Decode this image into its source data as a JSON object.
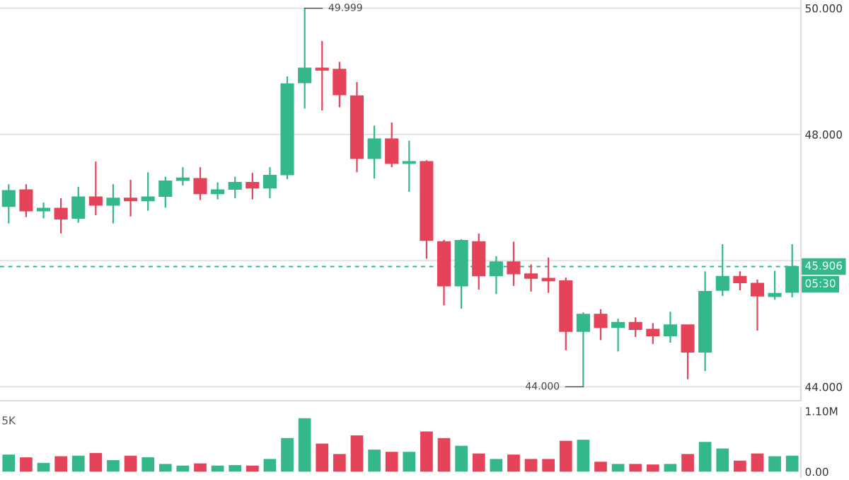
{
  "chart_data": [
    {
      "type": "candlestick",
      "categories": [
        null,
        null,
        null,
        null,
        null,
        null,
        null,
        null,
        null,
        null,
        null,
        null,
        null,
        null,
        null,
        null,
        null,
        null,
        null,
        null,
        null,
        null,
        null,
        null,
        null,
        null,
        null,
        null,
        null,
        null,
        null,
        null,
        null,
        null,
        null,
        null,
        null,
        null,
        null,
        null,
        null,
        null,
        null,
        null,
        null,
        null
      ],
      "ohlc": [
        [
          46.86,
          47.21,
          46.59,
          47.11
        ],
        [
          47.12,
          47.21,
          46.69,
          46.79
        ],
        [
          46.79,
          46.92,
          46.67,
          46.83
        ],
        [
          46.83,
          46.99,
          46.43,
          46.66
        ],
        [
          46.67,
          47.17,
          46.6,
          47.01
        ],
        [
          47.01,
          47.57,
          46.72,
          46.88
        ],
        [
          46.88,
          47.21,
          46.59,
          46.99
        ],
        [
          46.99,
          47.28,
          46.7,
          46.95
        ],
        [
          46.95,
          47.4,
          46.79,
          47.01
        ],
        [
          47.02,
          47.33,
          46.84,
          47.26
        ],
        [
          47.27,
          47.48,
          47.19,
          47.31
        ],
        [
          47.3,
          47.48,
          46.96,
          47.06
        ],
        [
          47.06,
          47.24,
          46.97,
          47.12
        ],
        [
          47.13,
          47.33,
          46.99,
          47.24
        ],
        [
          47.24,
          47.39,
          46.97,
          47.15
        ],
        [
          47.15,
          47.48,
          46.99,
          47.35
        ],
        [
          47.36,
          48.92,
          47.29,
          48.8
        ],
        [
          48.82,
          49.999,
          48.41,
          49.05
        ],
        [
          49.05,
          49.48,
          48.38,
          49.02
        ],
        [
          49.03,
          49.15,
          48.43,
          48.63
        ],
        [
          48.61,
          48.83,
          47.4,
          47.62
        ],
        [
          47.62,
          48.14,
          47.3,
          47.93
        ],
        [
          47.93,
          48.19,
          47.48,
          47.54
        ],
        [
          47.54,
          47.9,
          47.09,
          47.57
        ],
        [
          47.57,
          47.59,
          46.03,
          46.32
        ],
        [
          46.3,
          46.33,
          45.29,
          45.6
        ],
        [
          45.6,
          46.34,
          45.24,
          46.32
        ],
        [
          46.3,
          46.43,
          45.54,
          45.76
        ],
        [
          45.76,
          46.07,
          45.47,
          45.98
        ],
        [
          45.98,
          46.3,
          45.6,
          45.79
        ],
        [
          45.79,
          45.94,
          45.51,
          45.72
        ],
        [
          45.72,
          46.05,
          45.49,
          45.68
        ],
        [
          45.68,
          45.73,
          44.58,
          44.88
        ],
        [
          44.88,
          45.18,
          44.0,
          45.15
        ],
        [
          45.15,
          45.23,
          44.74,
          44.94
        ],
        [
          44.94,
          45.08,
          44.56,
          45.02
        ],
        [
          45.02,
          45.1,
          44.79,
          44.91
        ],
        [
          44.91,
          45.01,
          44.68,
          44.81
        ],
        [
          44.81,
          45.19,
          44.7,
          44.98
        ],
        [
          44.98,
          44.98,
          44.12,
          44.55
        ],
        [
          44.55,
          45.83,
          44.25,
          45.51
        ],
        [
          45.53,
          46.26,
          45.44,
          45.75
        ],
        [
          45.75,
          45.83,
          45.53,
          45.65
        ],
        [
          45.64,
          45.7,
          44.89,
          45.44
        ],
        [
          45.43,
          45.84,
          45.38,
          45.48
        ],
        [
          45.5,
          46.26,
          45.42,
          45.906
        ]
      ],
      "colors": [
        "#34b88a",
        "#e5435a",
        "#34b88a",
        "#e5435a",
        "#34b88a",
        "#e5435a",
        "#34b88a",
        "#e5435a",
        "#34b88a",
        "#34b88a",
        "#34b88a",
        "#e5435a",
        "#34b88a",
        "#34b88a",
        "#e5435a",
        "#34b88a",
        "#34b88a",
        "#34b88a",
        "#e5435a",
        "#e5435a",
        "#e5435a",
        "#34b88a",
        "#e5435a",
        "#34b88a",
        "#e5435a",
        "#e5435a",
        "#34b88a",
        "#e5435a",
        "#34b88a",
        "#e5435a",
        "#e5435a",
        "#e5435a",
        "#e5435a",
        "#34b88a",
        "#e5435a",
        "#34b88a",
        "#e5435a",
        "#e5435a",
        "#34b88a",
        "#e5435a",
        "#34b88a",
        "#34b88a",
        "#e5435a",
        "#e5435a",
        "#34b88a",
        "#34b88a"
      ],
      "ylim": [
        43.78,
        50.13
      ],
      "yticks": [
        {
          "value": 44,
          "label": "44.000"
        },
        {
          "value": 46,
          "label": null
        },
        {
          "value": 48,
          "label": "48.000"
        },
        {
          "value": 50,
          "label": "50.000"
        }
      ],
      "tick_labels": "y",
      "grid": "y",
      "ref_lines": [
        {
          "axis": "y",
          "value": 45.906,
          "label": "45.906",
          "color": "#34b88a",
          "line_style": "dashed"
        }
      ],
      "annotations": [
        "49.999",
        "44.000",
        "05:30"
      ]
    },
    {
      "type": "bar",
      "categories": [
        null,
        null,
        null,
        null,
        null,
        null,
        null,
        null,
        null,
        null,
        null,
        null,
        null,
        null,
        null,
        null,
        null,
        null,
        null,
        null,
        null,
        null,
        null,
        null,
        null,
        null,
        null,
        null,
        null,
        null,
        null,
        null,
        null,
        null,
        null,
        null,
        null,
        null,
        null,
        null,
        null,
        null,
        null,
        null,
        null,
        null
      ],
      "values": [
        0.31,
        0.26,
        0.16,
        0.28,
        0.29,
        0.34,
        0.21,
        0.29,
        0.26,
        0.14,
        0.11,
        0.15,
        0.11,
        0.12,
        0.11,
        0.23,
        0.61,
        0.97,
        0.51,
        0.32,
        0.66,
        0.4,
        0.36,
        0.36,
        0.73,
        0.61,
        0.47,
        0.33,
        0.23,
        0.31,
        0.23,
        0.23,
        0.56,
        0.58,
        0.18,
        0.14,
        0.14,
        0.13,
        0.14,
        0.32,
        0.54,
        0.42,
        0.2,
        0.33,
        0.28,
        0.29
      ],
      "colors": [
        "#34b88a",
        "#e5435a",
        "#34b88a",
        "#e5435a",
        "#34b88a",
        "#e5435a",
        "#34b88a",
        "#e5435a",
        "#34b88a",
        "#34b88a",
        "#34b88a",
        "#e5435a",
        "#34b88a",
        "#34b88a",
        "#e5435a",
        "#34b88a",
        "#34b88a",
        "#34b88a",
        "#e5435a",
        "#e5435a",
        "#e5435a",
        "#34b88a",
        "#e5435a",
        "#34b88a",
        "#e5435a",
        "#e5435a",
        "#34b88a",
        "#e5435a",
        "#34b88a",
        "#e5435a",
        "#e5435a",
        "#e5435a",
        "#e5435a",
        "#34b88a",
        "#e5435a",
        "#34b88a",
        "#e5435a",
        "#e5435a",
        "#34b88a",
        "#e5435a",
        "#34b88a",
        "#34b88a",
        "#e5435a",
        "#e5435a",
        "#34b88a",
        "#34b88a"
      ],
      "ylim": [
        -0.1,
        1.16
      ],
      "yticks": [
        {
          "value": 0,
          "label": "0.00"
        },
        {
          "value": 1.1,
          "label": "1.10M"
        }
      ],
      "tick_labels": "y",
      "annotations": [
        "5K"
      ]
    }
  ]
}
